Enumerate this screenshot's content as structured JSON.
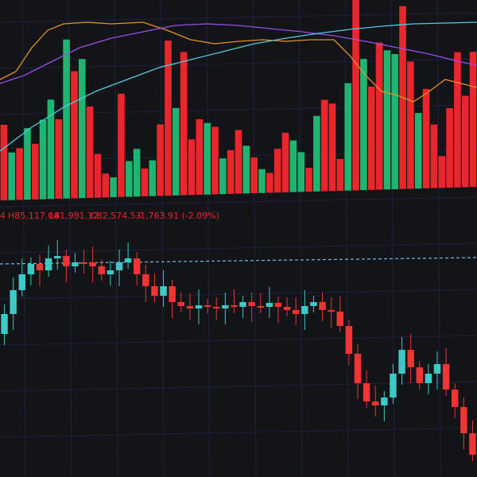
{
  "ohlc_bar": {
    "open_fragment": "4",
    "high": "H85,117.04",
    "low": "L81,981.12",
    "close": "C82,574.53",
    "change": "-1,763.91 (-2.09%)"
  }
}
